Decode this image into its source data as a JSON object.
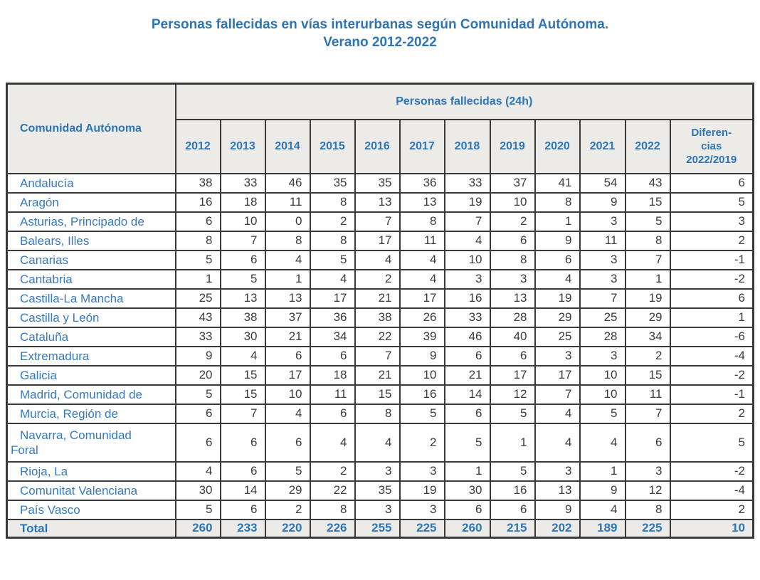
{
  "title": {
    "line1": "Personas fallecidas en vías interurbanas según Comunidad Autónoma.",
    "line2": "Verano 2012-2022"
  },
  "chart_data": {
    "type": "table",
    "title": "Personas fallecidas en vías interurbanas según Comunidad Autónoma. Verano 2012-2022",
    "corner_header": "Comunidad Autónoma",
    "group_header": "Personas fallecidas (24h)",
    "years": [
      "2012",
      "2013",
      "2014",
      "2015",
      "2016",
      "2017",
      "2018",
      "2019",
      "2020",
      "2021",
      "2022"
    ],
    "diff_header_lines": [
      "Diferen-",
      "cias",
      "2022/2019"
    ],
    "rows": [
      {
        "name": "Andalucía",
        "values": [
          38,
          33,
          46,
          35,
          35,
          36,
          33,
          37,
          41,
          54,
          43
        ],
        "diff": 6
      },
      {
        "name": "Aragón",
        "values": [
          16,
          18,
          11,
          8,
          13,
          13,
          19,
          10,
          8,
          9,
          15
        ],
        "diff": 5
      },
      {
        "name": "Asturias, Principado de",
        "values": [
          6,
          10,
          0,
          2,
          7,
          8,
          7,
          2,
          1,
          3,
          5
        ],
        "diff": 3
      },
      {
        "name": "Balears, Illes",
        "values": [
          8,
          7,
          8,
          8,
          17,
          11,
          4,
          6,
          9,
          11,
          8
        ],
        "diff": 2
      },
      {
        "name": "Canarias",
        "values": [
          5,
          6,
          4,
          5,
          4,
          4,
          10,
          8,
          6,
          3,
          7
        ],
        "diff": -1
      },
      {
        "name": "Cantabria",
        "values": [
          1,
          5,
          1,
          4,
          2,
          4,
          3,
          3,
          4,
          3,
          1
        ],
        "diff": -2
      },
      {
        "name": "Castilla-La Mancha",
        "values": [
          25,
          13,
          13,
          17,
          21,
          17,
          16,
          13,
          19,
          7,
          19
        ],
        "diff": 6
      },
      {
        "name": "Castilla y León",
        "values": [
          43,
          38,
          37,
          36,
          38,
          26,
          33,
          28,
          29,
          25,
          29
        ],
        "diff": 1
      },
      {
        "name": "Cataluña",
        "values": [
          33,
          30,
          21,
          34,
          22,
          39,
          46,
          40,
          25,
          28,
          34
        ],
        "diff": -6
      },
      {
        "name": "Extremadura",
        "values": [
          9,
          4,
          6,
          6,
          7,
          9,
          6,
          6,
          3,
          3,
          2
        ],
        "diff": -4
      },
      {
        "name": "Galicia",
        "values": [
          20,
          15,
          17,
          18,
          21,
          10,
          21,
          17,
          17,
          10,
          15
        ],
        "diff": -2
      },
      {
        "name": "Madrid, Comunidad de",
        "values": [
          5,
          15,
          10,
          11,
          15,
          16,
          14,
          12,
          7,
          10,
          11
        ],
        "diff": -1
      },
      {
        "name": "Murcia, Región de",
        "values": [
          6,
          7,
          4,
          6,
          8,
          5,
          6,
          5,
          4,
          5,
          7
        ],
        "diff": 2
      },
      {
        "name": "Navarra, Comunidad\nForal",
        "values": [
          6,
          6,
          6,
          4,
          4,
          2,
          5,
          1,
          4,
          4,
          6
        ],
        "diff": 5
      },
      {
        "name": "Rioja, La",
        "values": [
          4,
          6,
          5,
          2,
          3,
          3,
          1,
          5,
          3,
          1,
          3
        ],
        "diff": -2
      },
      {
        "name": "Comunitat Valenciana",
        "values": [
          30,
          14,
          29,
          22,
          35,
          19,
          30,
          16,
          13,
          9,
          12
        ],
        "diff": -4
      },
      {
        "name": "País Vasco",
        "values": [
          5,
          6,
          2,
          8,
          3,
          3,
          6,
          6,
          9,
          4,
          8
        ],
        "diff": 2
      }
    ],
    "total": {
      "label": "Total",
      "values": [
        260,
        233,
        220,
        226,
        255,
        225,
        260,
        215,
        202,
        189,
        225
      ],
      "diff": 10
    }
  },
  "colors": {
    "accent_blue": "#2E75B6",
    "region_blue": "#3679BC",
    "number_color": "#3B3B3B",
    "header_bg": "#ECEBE8",
    "border": "#3A3A3A"
  }
}
